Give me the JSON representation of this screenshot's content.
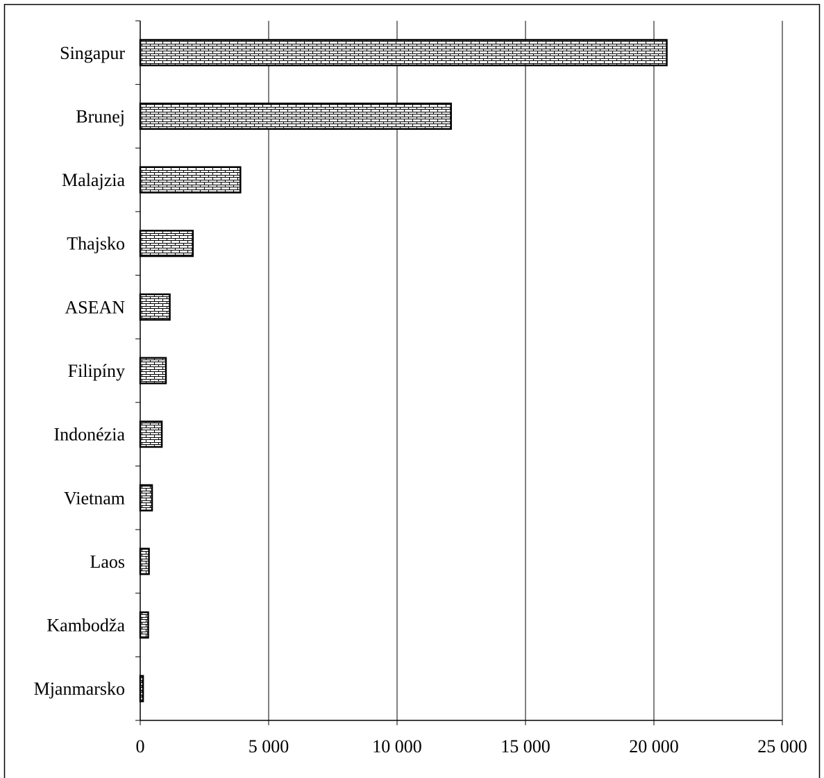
{
  "chart_data": {
    "type": "bar",
    "orientation": "horizontal",
    "categories": [
      "Singapur",
      "Brunej",
      "Malajzia",
      "Thajsko",
      "ASEAN",
      "Filipíny",
      "Indonézia",
      "Vietnam",
      "Laos",
      "Kambodža",
      "Mjanmarsko"
    ],
    "values": [
      20500,
      12100,
      3900,
      2050,
      1150,
      1000,
      840,
      460,
      340,
      310,
      110
    ],
    "x_ticks": [
      "0",
      "5 000",
      "10 000",
      "15 000",
      "20 000",
      "25 000"
    ],
    "xlim": [
      0,
      25000
    ],
    "title": "",
    "xlabel": "",
    "ylabel": "",
    "grid": "vertical",
    "legend": "none",
    "bar_fill": "hatched brick pattern",
    "colors": {
      "bar_edge": "#000000",
      "bar_pattern": "#000000",
      "bar_background": "#ffffff",
      "gridline": "#000000",
      "frame": "#000000"
    }
  }
}
